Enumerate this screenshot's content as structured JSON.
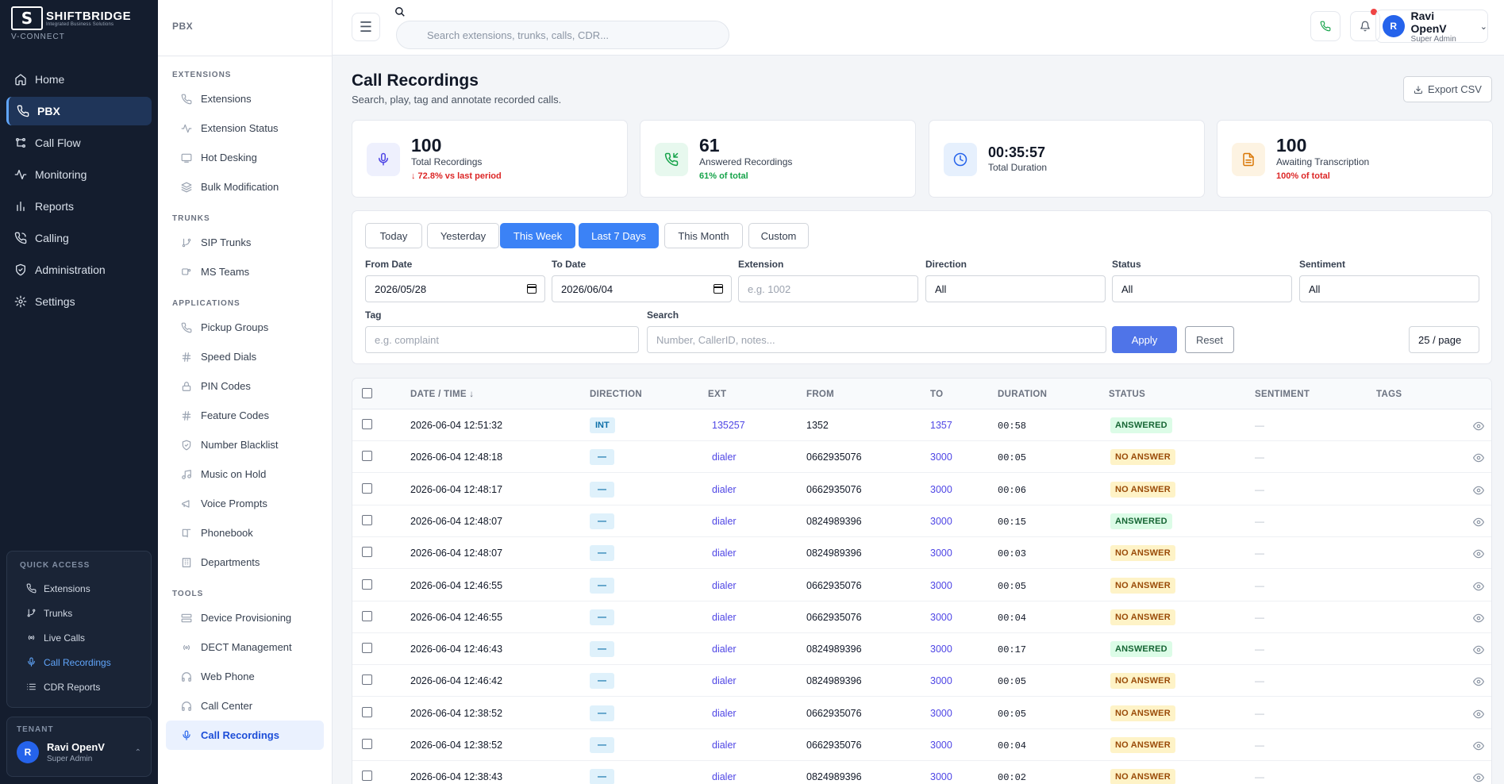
{
  "brand": {
    "logo_text": "SHIFTBRIDGE",
    "logo_sub": "Integrated Business Solutions",
    "product": "V-CONNECT"
  },
  "nav": {
    "items": [
      {
        "label": "Home",
        "icon": "home-icon"
      },
      {
        "label": "PBX",
        "icon": "phone-icon",
        "active": true
      },
      {
        "label": "Call Flow",
        "icon": "flow-icon"
      },
      {
        "label": "Monitoring",
        "icon": "activity-icon"
      },
      {
        "label": "Reports",
        "icon": "bar-chart-icon"
      },
      {
        "label": "Calling",
        "icon": "phone-call-icon"
      },
      {
        "label": "Administration",
        "icon": "shield-icon"
      },
      {
        "label": "Settings",
        "icon": "gear-icon"
      }
    ]
  },
  "quick_access": {
    "title": "QUICK ACCESS",
    "items": [
      {
        "label": "Extensions"
      },
      {
        "label": "Trunks"
      },
      {
        "label": "Live Calls"
      },
      {
        "label": "Call Recordings",
        "active": true
      },
      {
        "label": "CDR Reports"
      }
    ]
  },
  "tenant": {
    "title": "TENANT",
    "avatar": "R",
    "name": "Ravi OpenV",
    "role": "Super Admin"
  },
  "subnav": {
    "title": "PBX",
    "sections": [
      {
        "title": "EXTENSIONS",
        "items": [
          "Extensions",
          "Extension Status",
          "Hot Desking",
          "Bulk Modification"
        ]
      },
      {
        "title": "TRUNKS",
        "items": [
          "SIP Trunks",
          "MS Teams"
        ]
      },
      {
        "title": "APPLICATIONS",
        "items": [
          "Pickup Groups",
          "Speed Dials",
          "PIN Codes",
          "Feature Codes",
          "Number Blacklist",
          "Music on Hold",
          "Voice Prompts",
          "Phonebook",
          "Departments"
        ]
      },
      {
        "title": "TOOLS",
        "items": [
          "Device Provisioning",
          "DECT Management",
          "Web Phone",
          "Call Center",
          "Call Recordings"
        ]
      }
    ],
    "active": "Call Recordings"
  },
  "header": {
    "search_placeholder": "Search extensions, trunks, calls, CDR...",
    "user": {
      "avatar": "R",
      "name": "Ravi OpenV",
      "role": "Super Admin"
    }
  },
  "page": {
    "title": "Call Recordings",
    "subtitle": "Search, play, tag and annotate recorded calls.",
    "export_label": "Export CSV"
  },
  "stats": [
    {
      "value": "100",
      "label": "Total Recordings",
      "sub": "↓ 72.8% vs last period",
      "sub_color": "#dc2626",
      "icon": "microphone-icon",
      "bg": "#eef0fd",
      "fg": "#4f46e5"
    },
    {
      "value": "61",
      "label": "Answered Recordings",
      "sub": "61% of total",
      "sub_color": "#16a34a",
      "icon": "phone-incoming-icon",
      "bg": "#e7f8ee",
      "fg": "#16a34a"
    },
    {
      "value": "00:35:57",
      "label": "Total Duration",
      "sub": "",
      "sub_color": "",
      "icon": "clock-icon",
      "bg": "#e6f0fd",
      "fg": "#2563eb"
    },
    {
      "value": "100",
      "label": "Awaiting Transcription",
      "sub": "100% of total",
      "sub_color": "#dc2626",
      "icon": "file-text-icon",
      "bg": "#fdf3e2",
      "fg": "#d97706"
    }
  ],
  "filters": {
    "quick": [
      {
        "label": "Today"
      },
      {
        "label": "Yesterday"
      },
      {
        "label": "This Week",
        "selected": true
      },
      {
        "label": "Last 7 Days",
        "selected": true
      },
      {
        "label": "This Month"
      },
      {
        "label": "Custom"
      }
    ],
    "from_label": "From Date",
    "from_value": "2026/05/28",
    "to_label": "To Date",
    "to_value": "2026/06/04",
    "extension_label": "Extension",
    "extension_placeholder": "e.g. 1002",
    "direction_label": "Direction",
    "direction_value": "All",
    "status_label": "Status",
    "status_value": "All",
    "sentiment_label": "Sentiment",
    "sentiment_value": "All",
    "tag_label": "Tag",
    "tag_placeholder": "e.g. complaint",
    "search_label": "Search",
    "search_placeholder": "Number, CallerID, notes...",
    "apply_label": "Apply",
    "reset_label": "Reset",
    "per_page": "25 / page"
  },
  "table": {
    "columns": [
      "DATE / TIME ↓",
      "DIRECTION",
      "EXT",
      "FROM",
      "TO",
      "DURATION",
      "STATUS",
      "SENTIMENT",
      "TAGS"
    ],
    "rows": [
      {
        "datetime": "2026-06-04 12:51:32",
        "direction": "INT",
        "ext": "135257",
        "from": "1352",
        "to": "1357",
        "duration": "00:58",
        "status": "ANSWERED",
        "sentiment": "—"
      },
      {
        "datetime": "2026-06-04 12:48:18",
        "direction": "—",
        "ext": "dialer",
        "from": "0662935076",
        "to": "3000",
        "duration": "00:05",
        "status": "NO ANSWER",
        "sentiment": "—"
      },
      {
        "datetime": "2026-06-04 12:48:17",
        "direction": "—",
        "ext": "dialer",
        "from": "0662935076",
        "to": "3000",
        "duration": "00:06",
        "status": "NO ANSWER",
        "sentiment": "—"
      },
      {
        "datetime": "2026-06-04 12:48:07",
        "direction": "—",
        "ext": "dialer",
        "from": "0824989396",
        "to": "3000",
        "duration": "00:15",
        "status": "ANSWERED",
        "sentiment": "—"
      },
      {
        "datetime": "2026-06-04 12:48:07",
        "direction": "—",
        "ext": "dialer",
        "from": "0824989396",
        "to": "3000",
        "duration": "00:03",
        "status": "NO ANSWER",
        "sentiment": "—"
      },
      {
        "datetime": "2026-06-04 12:46:55",
        "direction": "—",
        "ext": "dialer",
        "from": "0662935076",
        "to": "3000",
        "duration": "00:05",
        "status": "NO ANSWER",
        "sentiment": "—"
      },
      {
        "datetime": "2026-06-04 12:46:55",
        "direction": "—",
        "ext": "dialer",
        "from": "0662935076",
        "to": "3000",
        "duration": "00:04",
        "status": "NO ANSWER",
        "sentiment": "—"
      },
      {
        "datetime": "2026-06-04 12:46:43",
        "direction": "—",
        "ext": "dialer",
        "from": "0824989396",
        "to": "3000",
        "duration": "00:17",
        "status": "ANSWERED",
        "sentiment": "—"
      },
      {
        "datetime": "2026-06-04 12:46:42",
        "direction": "—",
        "ext": "dialer",
        "from": "0824989396",
        "to": "3000",
        "duration": "00:05",
        "status": "NO ANSWER",
        "sentiment": "—"
      },
      {
        "datetime": "2026-06-04 12:38:52",
        "direction": "—",
        "ext": "dialer",
        "from": "0662935076",
        "to": "3000",
        "duration": "00:05",
        "status": "NO ANSWER",
        "sentiment": "—"
      },
      {
        "datetime": "2026-06-04 12:38:52",
        "direction": "—",
        "ext": "dialer",
        "from": "0662935076",
        "to": "3000",
        "duration": "00:04",
        "status": "NO ANSWER",
        "sentiment": "—"
      },
      {
        "datetime": "2026-06-04 12:38:43",
        "direction": "—",
        "ext": "dialer",
        "from": "0824989396",
        "to": "3000",
        "duration": "00:02",
        "status": "NO ANSWER",
        "sentiment": "—"
      }
    ]
  }
}
